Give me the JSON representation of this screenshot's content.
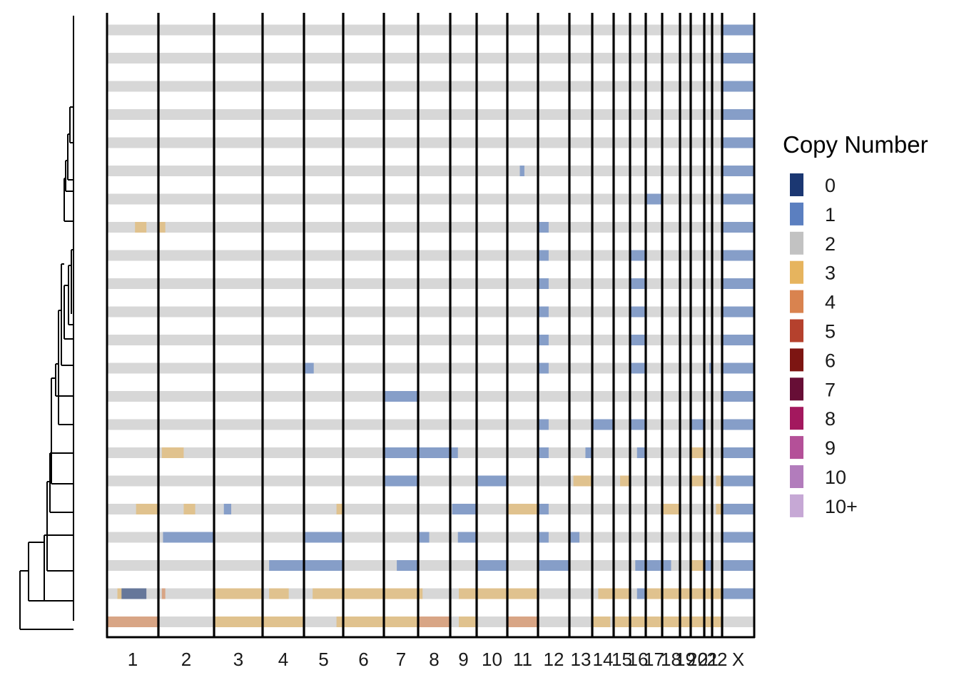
{
  "chart_data": {
    "type": "heatmap",
    "title": "",
    "xlabel": "",
    "ylabel": "",
    "categories": [
      "1",
      "2",
      "3",
      "4",
      "5",
      "6",
      "7",
      "8",
      "9",
      "10",
      "11",
      "12",
      "13",
      "14",
      "15",
      "16",
      "17",
      "18",
      "19",
      "20",
      "21",
      "22",
      "X"
    ],
    "chrom_lengths_mb": [
      248,
      242,
      198,
      190,
      181,
      171,
      159,
      145,
      138,
      134,
      135,
      133,
      114,
      107,
      102,
      90,
      83,
      80,
      59,
      64,
      47,
      51,
      156
    ],
    "n_cells": 22,
    "default_state": "2",
    "segments": [
      [
        [
          23,
          0,
          156,
          "1"
        ]
      ],
      [
        [
          23,
          0,
          156,
          "1"
        ]
      ],
      [
        [
          23,
          0,
          156,
          "1"
        ]
      ],
      [
        [
          23,
          0,
          156,
          "1"
        ]
      ],
      [
        [
          23,
          0,
          156,
          "1"
        ]
      ],
      [
        [
          11,
          55,
          75,
          "1"
        ],
        [
          23,
          0,
          156,
          "1"
        ]
      ],
      [
        [
          17,
          0,
          80,
          "1"
        ],
        [
          23,
          0,
          156,
          "1"
        ]
      ],
      [
        [
          1,
          135,
          190,
          "3"
        ],
        [
          2,
          0,
          30,
          "3"
        ],
        [
          12,
          0,
          45,
          "1"
        ],
        [
          23,
          0,
          156,
          "1"
        ]
      ],
      [
        [
          12,
          0,
          45,
          "1"
        ],
        [
          16,
          0,
          90,
          "1"
        ],
        [
          23,
          0,
          156,
          "1"
        ]
      ],
      [
        [
          12,
          0,
          45,
          "1"
        ],
        [
          16,
          0,
          90,
          "1"
        ],
        [
          23,
          0,
          156,
          "1"
        ]
      ],
      [
        [
          12,
          0,
          45,
          "1"
        ],
        [
          16,
          0,
          90,
          "1"
        ],
        [
          23,
          0,
          156,
          "1"
        ]
      ],
      [
        [
          12,
          0,
          45,
          "1"
        ],
        [
          16,
          0,
          90,
          "1"
        ],
        [
          23,
          0,
          156,
          "1"
        ]
      ],
      [
        [
          5,
          0,
          45,
          "1"
        ],
        [
          12,
          0,
          45,
          "1"
        ],
        [
          16,
          0,
          90,
          "1"
        ],
        [
          21,
          30,
          47,
          "1"
        ],
        [
          23,
          0,
          156,
          "1"
        ]
      ],
      [
        [
          7,
          0,
          159,
          "1"
        ],
        [
          23,
          0,
          156,
          "1"
        ]
      ],
      [
        [
          12,
          0,
          45,
          "1"
        ],
        [
          14,
          0,
          107,
          "1"
        ],
        [
          16,
          0,
          90,
          "1"
        ],
        [
          20,
          0,
          64,
          "1"
        ],
        [
          23,
          0,
          156,
          "1"
        ]
      ],
      [
        [
          2,
          15,
          110,
          "3"
        ],
        [
          7,
          0,
          159,
          "1"
        ],
        [
          8,
          0,
          145,
          "1"
        ],
        [
          9,
          0,
          40,
          "1"
        ],
        [
          12,
          0,
          45,
          "1"
        ],
        [
          13,
          80,
          114,
          "1"
        ],
        [
          16,
          40,
          90,
          "1"
        ],
        [
          20,
          0,
          64,
          "3"
        ],
        [
          23,
          0,
          156,
          "1"
        ]
      ],
      [
        [
          7,
          0,
          159,
          "1"
        ],
        [
          10,
          0,
          134,
          "1"
        ],
        [
          13,
          20,
          114,
          "3"
        ],
        [
          15,
          40,
          102,
          "3"
        ],
        [
          20,
          0,
          64,
          "3"
        ],
        [
          22,
          20,
          51,
          "3"
        ],
        [
          23,
          0,
          156,
          "1"
        ]
      ],
      [
        [
          1,
          140,
          248,
          "3"
        ],
        [
          2,
          110,
          160,
          "3"
        ],
        [
          3,
          40,
          70,
          "1"
        ],
        [
          5,
          150,
          181,
          "3"
        ],
        [
          9,
          10,
          138,
          "1"
        ],
        [
          11,
          0,
          135,
          "3"
        ],
        [
          12,
          0,
          45,
          "1"
        ],
        [
          18,
          0,
          80,
          "3"
        ],
        [
          22,
          20,
          51,
          "3"
        ],
        [
          23,
          0,
          156,
          "1"
        ]
      ],
      [
        [
          2,
          20,
          242,
          "1"
        ],
        [
          5,
          0,
          181,
          "1"
        ],
        [
          8,
          0,
          50,
          "1"
        ],
        [
          9,
          40,
          138,
          "1"
        ],
        [
          12,
          0,
          45,
          "1"
        ],
        [
          13,
          0,
          50,
          "1"
        ],
        [
          23,
          0,
          156,
          "1"
        ]
      ],
      [
        [
          4,
          30,
          190,
          "1"
        ],
        [
          5,
          0,
          181,
          "1"
        ],
        [
          7,
          60,
          159,
          "1"
        ],
        [
          10,
          0,
          134,
          "1"
        ],
        [
          12,
          0,
          133,
          "1"
        ],
        [
          16,
          30,
          90,
          "1"
        ],
        [
          17,
          0,
          83,
          "1"
        ],
        [
          18,
          0,
          40,
          "1"
        ],
        [
          20,
          0,
          64,
          "3"
        ],
        [
          21,
          0,
          47,
          "1"
        ],
        [
          23,
          0,
          156,
          "1"
        ]
      ],
      [
        [
          1,
          50,
          70,
          "3"
        ],
        [
          1,
          70,
          190,
          "0"
        ],
        [
          2,
          15,
          30,
          "4"
        ],
        [
          3,
          0,
          198,
          "3"
        ],
        [
          4,
          30,
          120,
          "3"
        ],
        [
          5,
          40,
          181,
          "3"
        ],
        [
          6,
          0,
          171,
          "3"
        ],
        [
          7,
          0,
          159,
          "3"
        ],
        [
          8,
          0,
          20,
          "3"
        ],
        [
          9,
          45,
          138,
          "3"
        ],
        [
          10,
          0,
          134,
          "3"
        ],
        [
          11,
          0,
          135,
          "3"
        ],
        [
          14,
          30,
          107,
          "3"
        ],
        [
          15,
          0,
          102,
          "3"
        ],
        [
          16,
          40,
          90,
          "1"
        ],
        [
          17,
          0,
          83,
          "3"
        ],
        [
          18,
          0,
          80,
          "3"
        ],
        [
          19,
          0,
          59,
          "3"
        ],
        [
          20,
          0,
          64,
          "3"
        ],
        [
          21,
          0,
          47,
          "3"
        ],
        [
          22,
          0,
          51,
          "3"
        ],
        [
          23,
          0,
          156,
          "1"
        ]
      ],
      [
        [
          1,
          0,
          248,
          "4"
        ],
        [
          3,
          0,
          198,
          "3"
        ],
        [
          4,
          0,
          190,
          "3"
        ],
        [
          5,
          150,
          181,
          "3"
        ],
        [
          6,
          0,
          171,
          "3"
        ],
        [
          7,
          0,
          159,
          "3"
        ],
        [
          8,
          0,
          145,
          "4"
        ],
        [
          9,
          45,
          138,
          "3"
        ],
        [
          11,
          0,
          135,
          "4"
        ],
        [
          14,
          0,
          90,
          "3"
        ],
        [
          15,
          0,
          102,
          "3"
        ],
        [
          16,
          0,
          90,
          "3"
        ],
        [
          17,
          0,
          83,
          "3"
        ],
        [
          18,
          0,
          80,
          "3"
        ],
        [
          19,
          0,
          59,
          "3"
        ],
        [
          20,
          0,
          64,
          "3"
        ],
        [
          21,
          0,
          47,
          "3"
        ],
        [
          22,
          0,
          51,
          "3"
        ]
      ]
    ],
    "legend": {
      "title": "Copy Number",
      "placement": "right",
      "entries": [
        {
          "label": "0",
          "color": "#1b3772"
        },
        {
          "label": "1",
          "color": "#5b7fc0"
        },
        {
          "label": "2",
          "color": "#c2c2c2"
        },
        {
          "label": "3",
          "color": "#e6b45e"
        },
        {
          "label": "4",
          "color": "#d9834f"
        },
        {
          "label": "5",
          "color": "#b5412d"
        },
        {
          "label": "6",
          "color": "#7d1512"
        },
        {
          "label": "7",
          "color": "#670e36"
        },
        {
          "label": "8",
          "color": "#a3185e"
        },
        {
          "label": "9",
          "color": "#b45098"
        },
        {
          "label": "10",
          "color": "#b27cbc"
        },
        {
          "label": "10+",
          "color": "#c6a8d5"
        }
      ]
    },
    "dendrogram": "left",
    "grid": false
  }
}
